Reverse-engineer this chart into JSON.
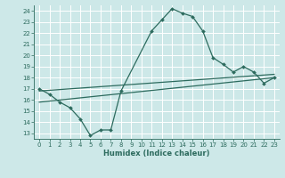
{
  "xlabel": "Humidex (Indice chaleur)",
  "background_color": "#cde8e8",
  "line_color": "#2d6b5e",
  "xlim": [
    -0.5,
    23.5
  ],
  "ylim": [
    12.5,
    24.5
  ],
  "yticks": [
    13,
    14,
    15,
    16,
    17,
    18,
    19,
    20,
    21,
    22,
    23,
    24
  ],
  "xticks": [
    0,
    1,
    2,
    3,
    4,
    5,
    6,
    7,
    8,
    9,
    10,
    11,
    12,
    13,
    14,
    15,
    16,
    17,
    18,
    19,
    20,
    21,
    22,
    23
  ],
  "series1_x": [
    0,
    1,
    2,
    3,
    4,
    5,
    6,
    7,
    8,
    11,
    12,
    13,
    14,
    15,
    16,
    17,
    18,
    19,
    20,
    21,
    22,
    23
  ],
  "series1_y": [
    17.0,
    16.5,
    15.8,
    15.3,
    14.3,
    12.8,
    13.3,
    13.3,
    16.8,
    22.2,
    23.2,
    24.2,
    23.8,
    23.5,
    22.2,
    19.8,
    19.2,
    18.5,
    19.0,
    18.5,
    17.5,
    18.0
  ],
  "series2_x": [
    0,
    23
  ],
  "series2_y": [
    16.8,
    18.3
  ],
  "series3_x": [
    0,
    23
  ],
  "series3_y": [
    15.8,
    18.0
  ]
}
